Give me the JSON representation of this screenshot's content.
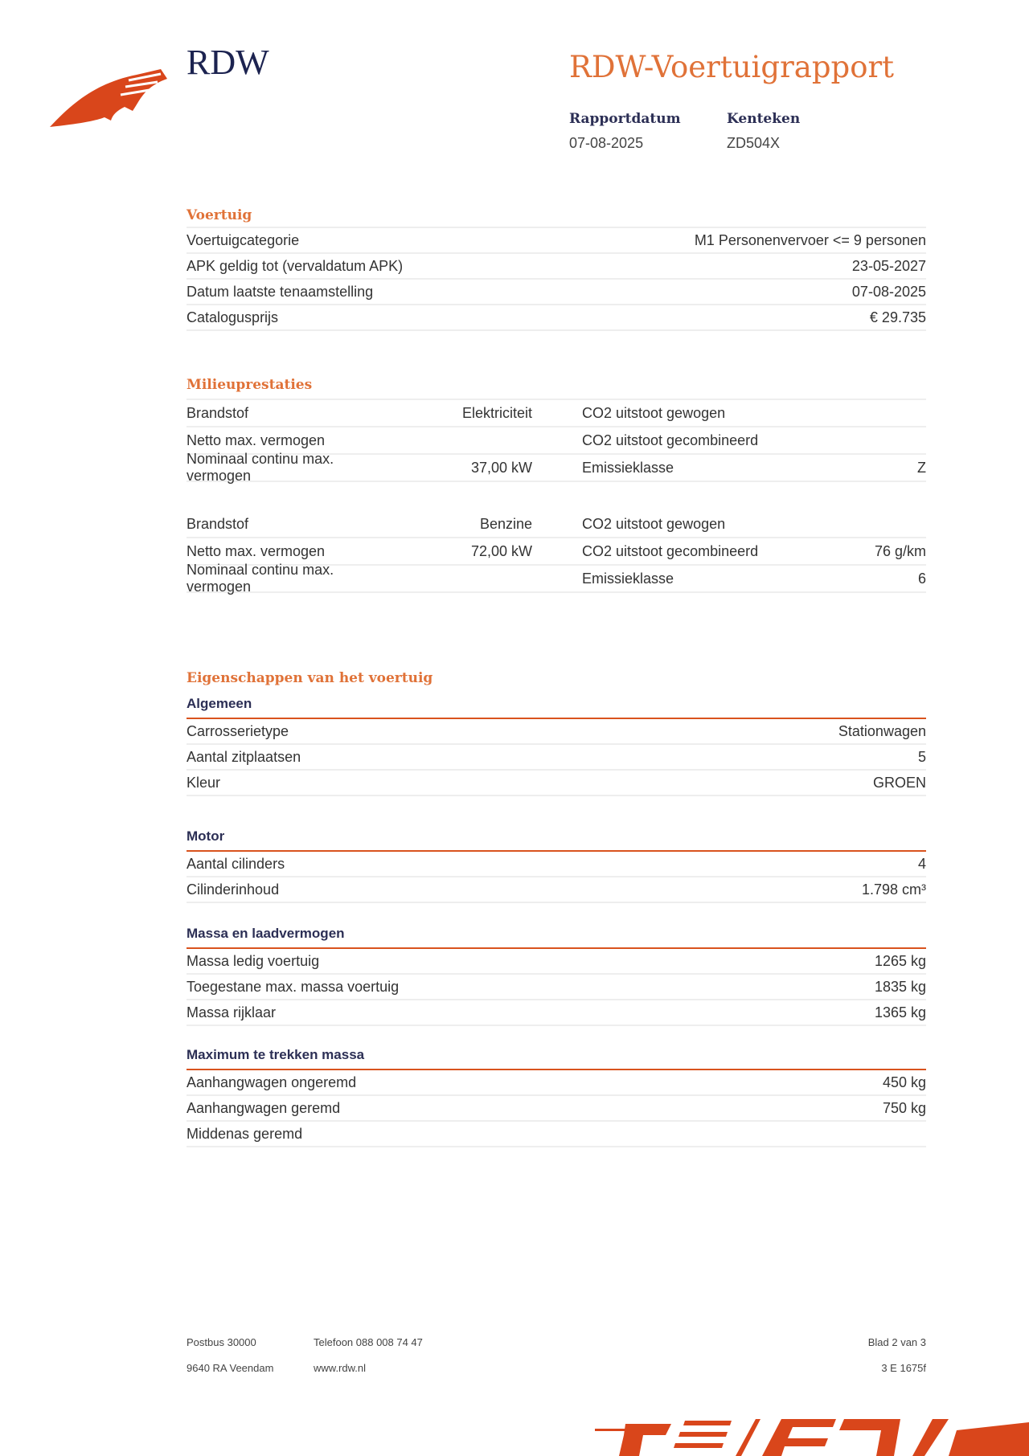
{
  "header": {
    "brand": "RDW",
    "title": "RDW-Voertuigrapport",
    "report_date_label": "Rapportdatum",
    "report_date": "07-08-2025",
    "plate_label": "Kenteken",
    "plate": "ZD504X"
  },
  "colors": {
    "accent": "#e07238",
    "logo": "#d9461b",
    "navy": "#1c2350"
  },
  "voertuig": {
    "title": "Voertuig",
    "rows": [
      {
        "label": "Voertuigcategorie",
        "value": "M1 Personenvervoer <= 9 personen"
      },
      {
        "label": "APK geldig tot (vervaldatum APK)",
        "value": "23-05-2027"
      },
      {
        "label": "Datum laatste tenaamstelling",
        "value": "07-08-2025"
      },
      {
        "label": "Catalogusprijs",
        "value": "€ 29.735"
      }
    ]
  },
  "milieu": {
    "title": "Milieuprestaties",
    "blocks": [
      [
        {
          "l1": "Brandstof",
          "v1": "Elektriciteit",
          "l2": "CO2 uitstoot gewogen",
          "v2": ""
        },
        {
          "l1": "Netto max. vermogen",
          "v1": "",
          "l2": "CO2 uitstoot gecombineerd",
          "v2": ""
        },
        {
          "l1": "Nominaal continu max. vermogen",
          "v1": "37,00 kW",
          "l2": "Emissieklasse",
          "v2": "Z"
        }
      ],
      [
        {
          "l1": "Brandstof",
          "v1": "Benzine",
          "l2": "CO2 uitstoot gewogen",
          "v2": ""
        },
        {
          "l1": "Netto max. vermogen",
          "v1": "72,00 kW",
          "l2": "CO2 uitstoot gecombineerd",
          "v2": "76 g/km"
        },
        {
          "l1": "Nominaal continu max. vermogen",
          "v1": "",
          "l2": "Emissieklasse",
          "v2": "6"
        }
      ]
    ]
  },
  "eigenschappen": {
    "title": "Eigenschappen van het voertuig",
    "groups": [
      {
        "title": "Algemeen",
        "rows": [
          {
            "label": "Carrosserietype",
            "value": "Stationwagen"
          },
          {
            "label": "Aantal zitplaatsen",
            "value": "5"
          },
          {
            "label": "Kleur",
            "value": "GROEN"
          }
        ]
      },
      {
        "title": "Motor",
        "rows": [
          {
            "label": "Aantal cilinders",
            "value": "4"
          },
          {
            "label": "Cilinderinhoud",
            "value": "1.798 cm³"
          }
        ]
      },
      {
        "title": "Massa en laadvermogen",
        "rows": [
          {
            "label": "Massa ledig voertuig",
            "value": "1265 kg"
          },
          {
            "label": "Toegestane max. massa voertuig",
            "value": "1835 kg"
          },
          {
            "label": "Massa rijklaar",
            "value": "1365 kg"
          }
        ]
      },
      {
        "title": "Maximum te trekken massa",
        "rows": [
          {
            "label": "Aanhangwagen ongeremd",
            "value": "450 kg"
          },
          {
            "label": "Aanhangwagen geremd",
            "value": "750 kg"
          },
          {
            "label": "Middenas geremd",
            "value": ""
          }
        ]
      }
    ]
  },
  "footer": {
    "postbus": "Postbus 30000",
    "address": "9640 RA Veendam",
    "phone": "Telefoon 088 008 74 47",
    "website": "www.rdw.nl",
    "page": "Blad 2 van 3",
    "code": "3 E 1675f"
  }
}
